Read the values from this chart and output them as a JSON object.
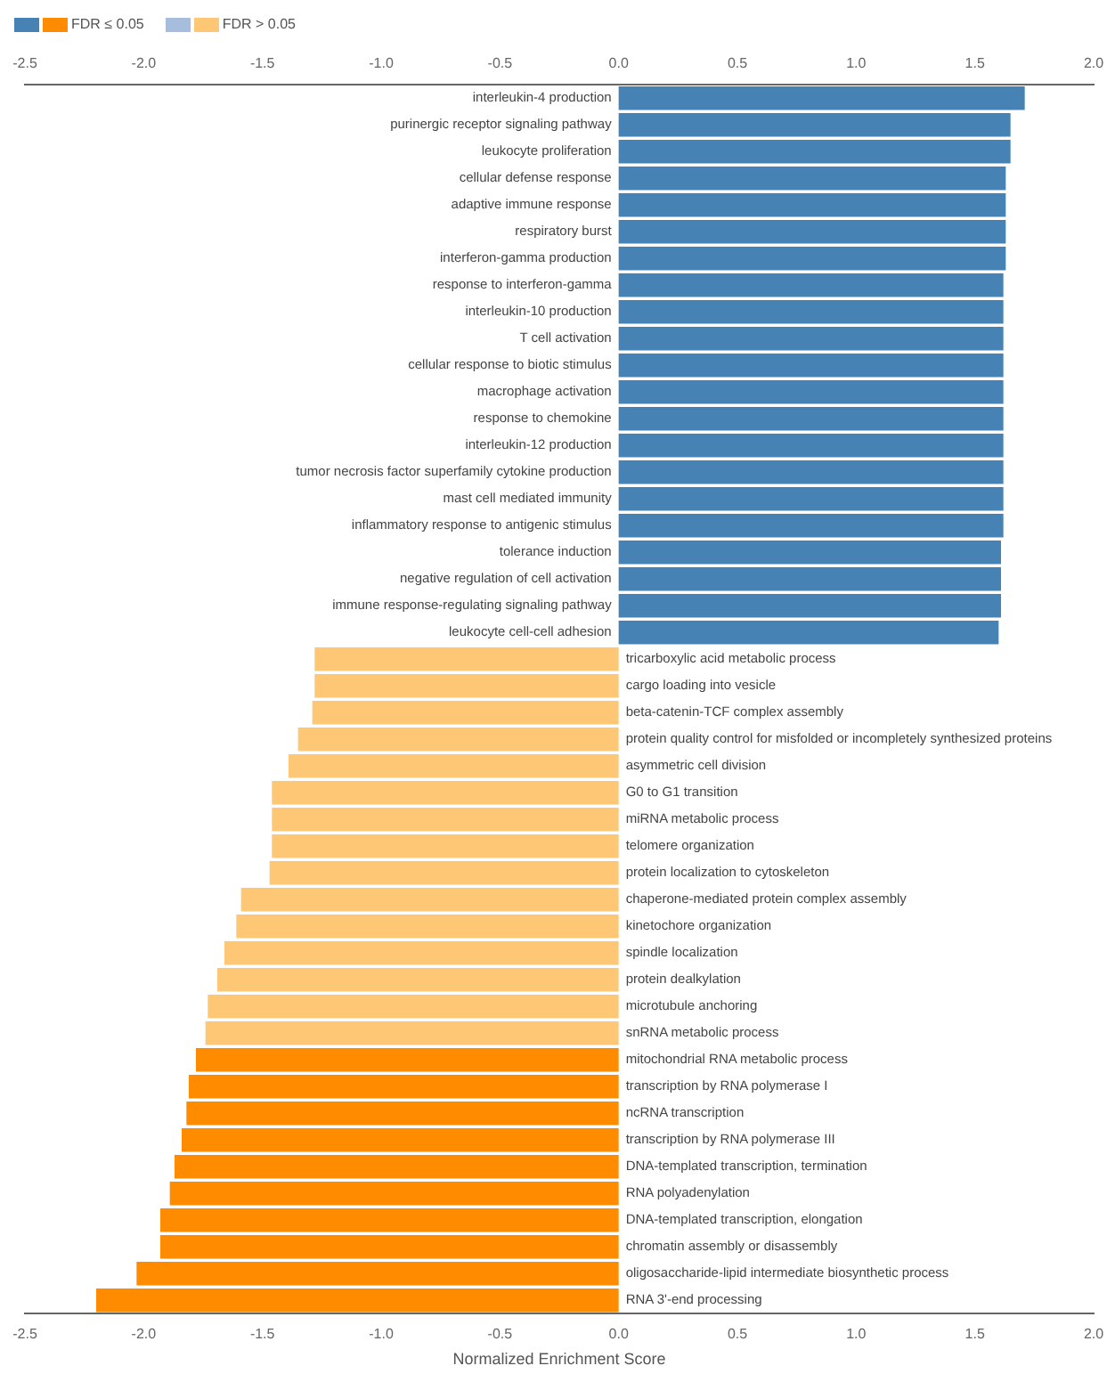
{
  "chart_data": {
    "type": "bar",
    "orientation": "horizontal",
    "xlabel": "Normalized Enrichment Score",
    "categories": [
      "interleukin-4 production",
      "purinergic receptor signaling pathway",
      "leukocyte proliferation",
      "cellular defense response",
      "adaptive immune response",
      "respiratory burst",
      "interferon-gamma production",
      "response to interferon-gamma",
      "interleukin-10 production",
      "T cell activation",
      "cellular response to biotic stimulus",
      "macrophage activation",
      "response to chemokine",
      "interleukin-12 production",
      "tumor necrosis factor superfamily cytokine production",
      "mast cell mediated immunity",
      "inflammatory response to antigenic stimulus",
      "tolerance induction",
      "negative regulation of cell activation",
      "immune response-regulating signaling pathway",
      "leukocyte cell-cell adhesion",
      "tricarboxylic acid metabolic process",
      "cargo loading into vesicle",
      "beta-catenin-TCF complex assembly",
      "protein quality control for misfolded or incompletely synthesized proteins",
      "asymmetric cell division",
      "G0 to G1 transition",
      "miRNA metabolic process",
      "telomere organization",
      "protein localization to cytoskeleton",
      "chaperone-mediated protein complex assembly",
      "kinetochore organization",
      "spindle localization",
      "protein dealkylation",
      "microtubule anchoring",
      "snRNA metabolic process",
      "mitochondrial RNA metabolic process",
      "transcription by RNA polymerase I",
      "ncRNA transcription",
      "transcription by RNA polymerase III",
      "DNA-templated transcription, termination",
      "RNA polyadenylation",
      "DNA-templated transcription, elongation",
      "chromatin assembly or disassembly",
      "oligosaccharide-lipid intermediate biosynthetic process",
      "RNA 3'-end processing"
    ],
    "series": [
      {
        "name": "FDR ≤ 0.05",
        "colors": [
          "#4682b4",
          "#4682b4",
          "#4682b4",
          "#4682b4",
          "#4682b4",
          "#4682b4",
          "#4682b4",
          "#4682b4",
          "#4682b4",
          "#4682b4",
          "#4682b4",
          "#4682b4",
          "#4682b4",
          "#4682b4",
          "#4682b4",
          "#4682b4",
          "#4682b4",
          "#4682b4",
          "#4682b4",
          "#4682b4",
          "#4682b4",
          null,
          null,
          null,
          null,
          null,
          null,
          null,
          null,
          null,
          null,
          null,
          null,
          null,
          null,
          null,
          "#ff8c00",
          "#ff8c00",
          "#ff8c00",
          "#ff8c00",
          "#ff8c00",
          "#ff8c00",
          "#ff8c00",
          "#ff8c00",
          "#ff8c00",
          "#ff8c00"
        ],
        "values": [
          1.71,
          1.65,
          1.65,
          1.63,
          1.63,
          1.63,
          1.63,
          1.62,
          1.62,
          1.62,
          1.62,
          1.62,
          1.62,
          1.62,
          1.62,
          1.62,
          1.62,
          1.61,
          1.61,
          1.61,
          1.6,
          null,
          null,
          null,
          null,
          null,
          null,
          null,
          null,
          null,
          null,
          null,
          null,
          null,
          null,
          null,
          -1.78,
          -1.81,
          -1.82,
          -1.84,
          -1.87,
          -1.89,
          -1.93,
          -1.93,
          -2.03,
          -2.2
        ]
      },
      {
        "name": "FDR > 0.05",
        "colors": [
          "#a6bddb",
          "#a6bddb",
          "#a6bddb",
          "#a6bddb",
          "#a6bddb",
          "#a6bddb",
          "#a6bddb",
          "#a6bddb",
          "#a6bddb",
          "#a6bddb",
          "#a6bddb",
          "#a6bddb",
          "#a6bddb",
          "#a6bddb",
          "#a6bddb",
          "#a6bddb",
          "#a6bddb",
          "#a6bddb",
          "#a6bddb",
          "#a6bddb",
          "#a6bddb",
          "#fdc776",
          "#fdc776",
          "#fdc776",
          "#fdc776",
          "#fdc776",
          "#fdc776",
          "#fdc776",
          "#fdc776",
          "#fdc776",
          "#fdc776",
          "#fdc776",
          "#fdc776",
          "#fdc776",
          "#fdc776",
          "#fdc776",
          null,
          null,
          null,
          null,
          null,
          null,
          null,
          null,
          null,
          null
        ],
        "values": [
          null,
          null,
          null,
          null,
          null,
          null,
          null,
          null,
          null,
          null,
          null,
          null,
          null,
          null,
          null,
          null,
          null,
          null,
          null,
          null,
          null,
          -1.28,
          -1.28,
          -1.29,
          -1.35,
          -1.39,
          -1.46,
          -1.46,
          -1.46,
          -1.47,
          -1.59,
          -1.61,
          -1.66,
          -1.69,
          -1.73,
          -1.74,
          null,
          null,
          null,
          null,
          null,
          null,
          null,
          null,
          null,
          null
        ]
      }
    ],
    "xlim": [
      -2.5,
      2.0
    ],
    "xticks": [
      -2.5,
      {
        "value": -2,
        "label": "-2.0"
      },
      -1.5,
      {
        "value": -1,
        "label": "-1.0"
      },
      -0.5,
      {
        "value": 0,
        "label": "0.0"
      },
      0.5,
      {
        "value": 1,
        "label": "1.0"
      },
      1.5,
      {
        "value": 2,
        "label": "2.0"
      }
    ],
    "x2lim": [
      -2.5,
      2.0
    ],
    "x2ticks": [
      -2.5,
      {
        "value": -2,
        "label": "-2.0"
      },
      -1.5,
      {
        "value": -1,
        "label": "-1.0"
      },
      -0.5,
      {
        "value": 0,
        "label": "0.0"
      },
      0.5,
      {
        "value": 1,
        "label": "1.0"
      },
      1.5,
      {
        "value": 2,
        "label": "2.0"
      }
    ],
    "grid": false,
    "legend": "top left"
  }
}
